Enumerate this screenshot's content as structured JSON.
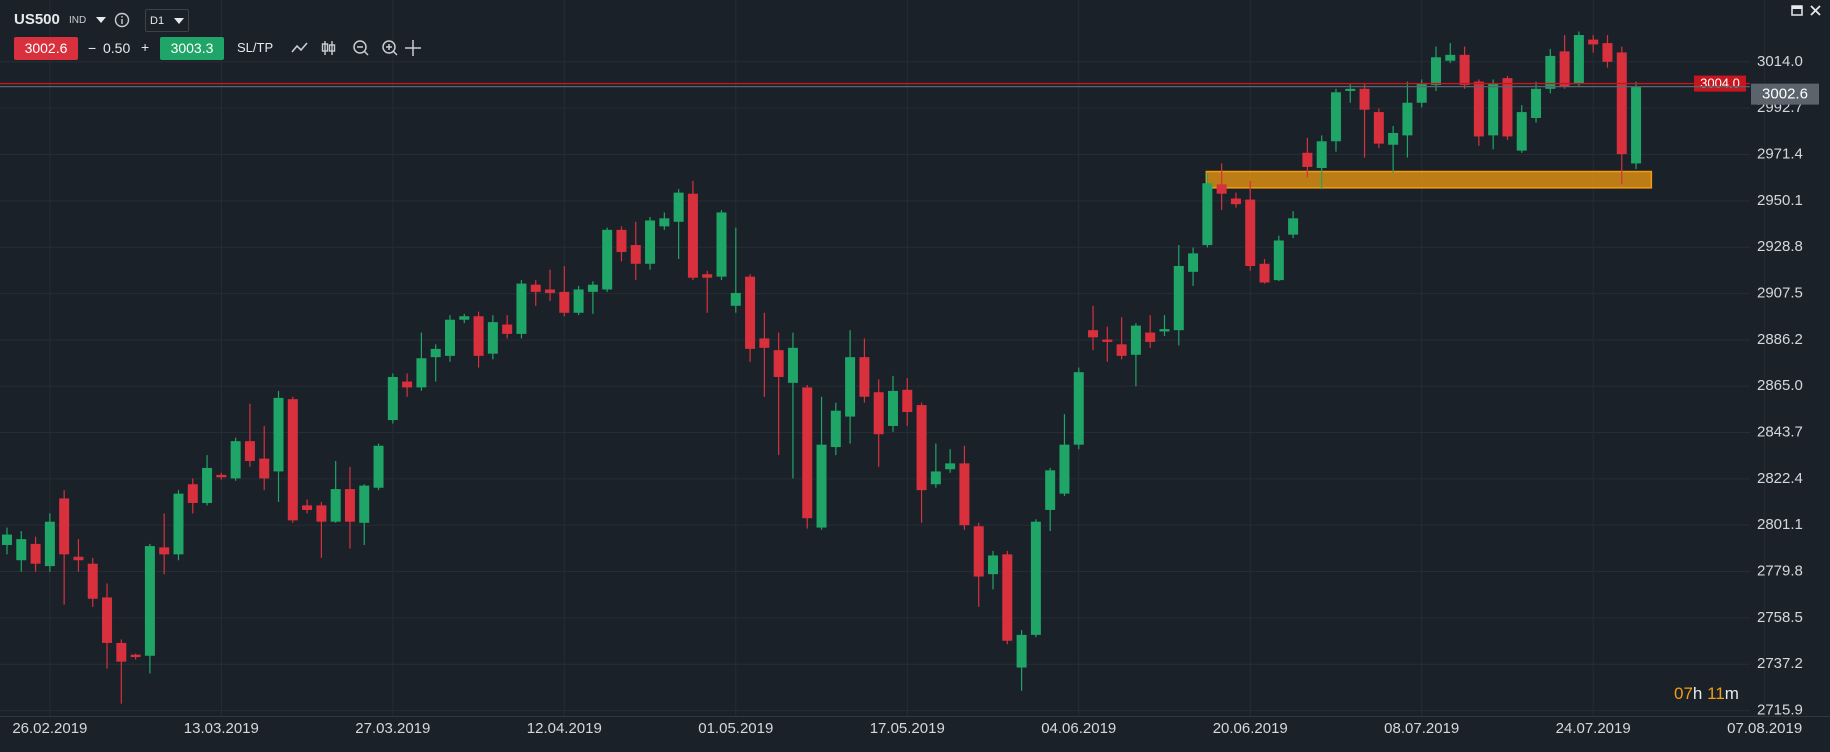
{
  "toolbar": {
    "symbol": "US500",
    "symbol_type": "IND",
    "timeframe": "D1",
    "sell_price": "3002.6",
    "minus": "−",
    "spread": "0.50",
    "plus": "+",
    "buy_price": "3003.3",
    "sltp": "SL/TP"
  },
  "countdown": {
    "hours": "07",
    "hours_unit": "h",
    "minutes": "11",
    "minutes_unit": "m"
  },
  "chart_data": {
    "type": "candlestick",
    "categories": [
      null,
      null,
      null,
      "26.02.2019",
      null,
      null,
      null,
      null,
      null,
      null,
      null,
      null,
      null,
      null,
      null,
      "13.03.2019",
      null,
      null,
      null,
      null,
      null,
      null,
      null,
      null,
      null,
      null,
      null,
      "27.03.2019",
      null,
      null,
      null,
      null,
      null,
      null,
      null,
      null,
      null,
      null,
      null,
      "12.04.2019",
      null,
      null,
      null,
      null,
      null,
      null,
      null,
      null,
      null,
      null,
      null,
      "01.05.2019",
      null,
      null,
      null,
      null,
      null,
      null,
      null,
      null,
      null,
      null,
      null,
      "17.05.2019",
      null,
      null,
      null,
      null,
      null,
      null,
      null,
      null,
      null,
      null,
      null,
      "04.06.2019",
      null,
      null,
      null,
      null,
      null,
      null,
      null,
      null,
      null,
      null,
      null,
      "20.06.2019",
      null,
      null,
      null,
      null,
      null,
      null,
      null,
      null,
      null,
      null,
      null,
      "08.07.2019",
      null,
      null,
      null,
      null,
      null,
      null,
      null,
      null,
      null,
      null,
      null,
      "24.07.2019",
      null,
      null,
      null,
      null,
      null,
      null,
      null,
      null,
      null,
      null,
      null,
      "07.08.2019"
    ],
    "open": [
      2792.0,
      2785.0,
      2792.5,
      2782.3,
      2813.4,
      2786.6,
      2783.4,
      2767.9,
      2747.0,
      2741.6,
      2741.1,
      2790.9,
      2787.7,
      2819.9,
      2811.3,
      2824.2,
      2822.6,
      2839.7,
      2831.7,
      2825.8,
      2859.0,
      2810.2,
      2810.2,
      2802.7,
      2817.7,
      2802.2,
      2818.3,
      2849.4,
      2867.1,
      2864.4,
      2878.3,
      2878.9,
      2895.5,
      2897.1,
      2879.9,
      2893.3,
      2889.0,
      2911.6,
      2909.4,
      2908.3,
      2898.7,
      2908.3,
      2909.4,
      2936.8,
      2929.8,
      2921.2,
      2938.4,
      2940.5,
      2953.4,
      2916.4,
      2915.3,
      2901.9,
      2915.3,
      2886.9,
      2881.5,
      2866.5,
      2864.4,
      2800.0,
      2837.0,
      2851.0,
      2878.3,
      2862.2,
      2846.7,
      2863.3,
      2856.3,
      2819.9,
      2826.8,
      2829.5,
      2800.6,
      2778.6,
      2787.7,
      2735.7,
      2750.7,
      2808.1,
      2815.6,
      2838.1,
      2890.7,
      2886.4,
      2884.2,
      2879.4,
      2889.6,
      2890.1,
      2890.7,
      2917.5,
      2929.8,
      2957.7,
      2951.2,
      2950.7,
      2921.2,
      2913.7,
      2934.6,
      2972.2,
      2965.2,
      2977.5,
      3000.6,
      3001.6,
      2990.9,
      2975.9,
      2980.2,
      2995.2,
      3003.3,
      3014.5,
      3017.2,
      3004.9,
      2980.2,
      3006.5,
      2973.2,
      2988.2,
      3001.6,
      3018.8,
      3003.8,
      3024.2,
      3022.6,
      3018.3,
      2967.3,
      null,
      null,
      null,
      null,
      null,
      null,
      null,
      null,
      null
    ],
    "high": [
      2800.0,
      2798.4,
      2795.8,
      2806.5,
      2817.2,
      2794.7,
      2786.1,
      2774.3,
      2748.6,
      2742.1,
      2792.5,
      2806.5,
      2817.2,
      2822.6,
      2833.3,
      2825.2,
      2841.3,
      2856.9,
      2846.7,
      2862.8,
      2860.1,
      2812.9,
      2811.8,
      2830.6,
      2827.9,
      2819.9,
      2838.6,
      2870.8,
      2870.8,
      2889.6,
      2884.2,
      2897.6,
      2898.2,
      2899.2,
      2897.6,
      2897.6,
      2913.7,
      2913.7,
      2918.5,
      2920.2,
      2911.0,
      2913.2,
      2937.8,
      2938.4,
      2940.5,
      2942.7,
      2944.8,
      2955.5,
      2959.3,
      2918.0,
      2945.9,
      2937.8,
      2916.4,
      2898.7,
      2889.6,
      2889.6,
      2865.5,
      2860.1,
      2857.4,
      2890.7,
      2886.9,
      2868.1,
      2869.7,
      2868.7,
      2857.4,
      2838.6,
      2836.0,
      2837.6,
      2802.2,
      2789.3,
      2789.3,
      2752.9,
      2803.8,
      2827.4,
      2852.1,
      2873.5,
      2901.9,
      2892.3,
      2896.6,
      2893.9,
      2897.6,
      2897.6,
      2929.8,
      2928.7,
      2963.0,
      2967.3,
      2953.9,
      2959.3,
      2923.4,
      2934.1,
      2945.4,
      2979.1,
      2980.2,
      3001.6,
      3003.8,
      3003.8,
      2992.5,
      2984.5,
      3004.9,
      3005.9,
      3021.0,
      3022.6,
      3021.0,
      3005.9,
      3005.9,
      3007.5,
      2994.1,
      3004.9,
      3019.9,
      3026.3,
      3027.9,
      3026.3,
      3026.3,
      3021.0,
      3004.9,
      null,
      null,
      null,
      null,
      null,
      null,
      null,
      null,
      null
    ],
    "low": [
      2787.7,
      2779.7,
      2779.7,
      2779.7,
      2764.6,
      2779.7,
      2763.6,
      2735.2,
      2719.1,
      2739.4,
      2733.0,
      2778.6,
      2785.0,
      2806.5,
      2810.2,
      2822.0,
      2821.5,
      2827.9,
      2817.2,
      2811.8,
      2802.2,
      2806.5,
      2786.1,
      2802.2,
      2790.4,
      2792.0,
      2817.2,
      2847.8,
      2860.1,
      2862.8,
      2867.1,
      2876.2,
      2893.9,
      2873.5,
      2877.3,
      2886.9,
      2886.9,
      2901.9,
      2904.1,
      2897.1,
      2897.6,
      2898.2,
      2908.3,
      2922.3,
      2913.7,
      2918.5,
      2936.8,
      2923.4,
      2913.7,
      2898.7,
      2913.7,
      2898.7,
      2876.2,
      2860.1,
      2833.3,
      2822.6,
      2799.5,
      2799.0,
      2833.3,
      2838.6,
      2857.4,
      2827.9,
      2844.0,
      2846.7,
      2802.2,
      2818.3,
      2825.2,
      2799.0,
      2763.6,
      2771.6,
      2746.4,
      2725.0,
      2749.6,
      2798.4,
      2814.5,
      2836.0,
      2881.5,
      2876.2,
      2877.3,
      2864.9,
      2882.6,
      2888.0,
      2883.7,
      2911.0,
      2928.7,
      2945.9,
      2947.0,
      2918.0,
      2912.1,
      2913.2,
      2933.0,
      2960.9,
      2955.5,
      2972.7,
      2995.2,
      2970.0,
      2974.3,
      2963.0,
      2970.0,
      2993.1,
      3000.6,
      3013.4,
      3001.6,
      2975.4,
      2973.8,
      2978.1,
      2972.2,
      2986.1,
      2999.5,
      3001.6,
      3002.7,
      3018.3,
      3011.3,
      2957.7,
      2964.7,
      null,
      null,
      null,
      null,
      null,
      null,
      null,
      null,
      null
    ],
    "close": [
      2796.8,
      2794.7,
      2783.4,
      2802.7,
      2787.7,
      2785.0,
      2767.3,
      2747.0,
      2738.4,
      2740.5,
      2791.5,
      2787.7,
      2815.6,
      2811.3,
      2827.4,
      2823.1,
      2839.7,
      2830.6,
      2822.6,
      2859.6,
      2803.3,
      2808.1,
      2802.7,
      2817.7,
      2802.7,
      2819.3,
      2837.6,
      2869.2,
      2864.4,
      2877.8,
      2882.1,
      2895.5,
      2897.1,
      2878.9,
      2894.4,
      2889.0,
      2912.1,
      2908.3,
      2907.8,
      2898.7,
      2909.4,
      2911.6,
      2936.8,
      2926.6,
      2921.2,
      2941.1,
      2942.1,
      2953.9,
      2914.8,
      2914.8,
      2944.8,
      2907.8,
      2882.1,
      2882.6,
      2869.2,
      2882.6,
      2804.3,
      2838.1,
      2853.7,
      2878.3,
      2860.1,
      2842.9,
      2862.8,
      2853.1,
      2817.2,
      2825.8,
      2829.5,
      2801.1,
      2777.5,
      2787.2,
      2748.0,
      2750.7,
      2802.7,
      2826.3,
      2838.1,
      2871.4,
      2887.4,
      2885.3,
      2878.9,
      2892.8,
      2885.3,
      2891.2,
      2920.2,
      2926.0,
      2958.2,
      2953.4,
      2948.6,
      2920.2,
      2912.6,
      2931.9,
      2942.1,
      2965.7,
      2977.5,
      3000.0,
      3001.6,
      2992.0,
      2976.4,
      2981.3,
      2995.2,
      3003.8,
      3016.1,
      3017.2,
      3003.3,
      2979.7,
      3003.8,
      2979.7,
      2990.9,
      3001.6,
      3016.7,
      3002.7,
      3026.3,
      3022.0,
      3014.0,
      2971.6,
      3002.6,
      null,
      null,
      null,
      null,
      null,
      null,
      null,
      null,
      null
    ],
    "up_color": "#1fa567",
    "down_color": "#d9303d",
    "ylim": [
      2713.2,
      3042.4
    ],
    "yticks": [
      {
        "value": 3014,
        "label": "3014.0"
      },
      2992.7,
      2971.4,
      2950.1,
      2928.8,
      2907.5,
      2886.2,
      {
        "value": 2865,
        "label": "2865.0"
      },
      2843.7,
      2822.4,
      2801.1,
      2779.8,
      2758.5,
      2737.2,
      2715.9
    ],
    "grid": true,
    "price_lines": [
      {
        "value": 3004,
        "label": "3004.0",
        "color": "#c8161f"
      },
      {
        "value": 3002.6,
        "label": "3002.6",
        "color": "#5b646d"
      }
    ],
    "zone": {
      "y": [
        2956.1,
        2963.6
      ],
      "x": [
        84,
        115
      ],
      "color": "#f39c12"
    }
  }
}
